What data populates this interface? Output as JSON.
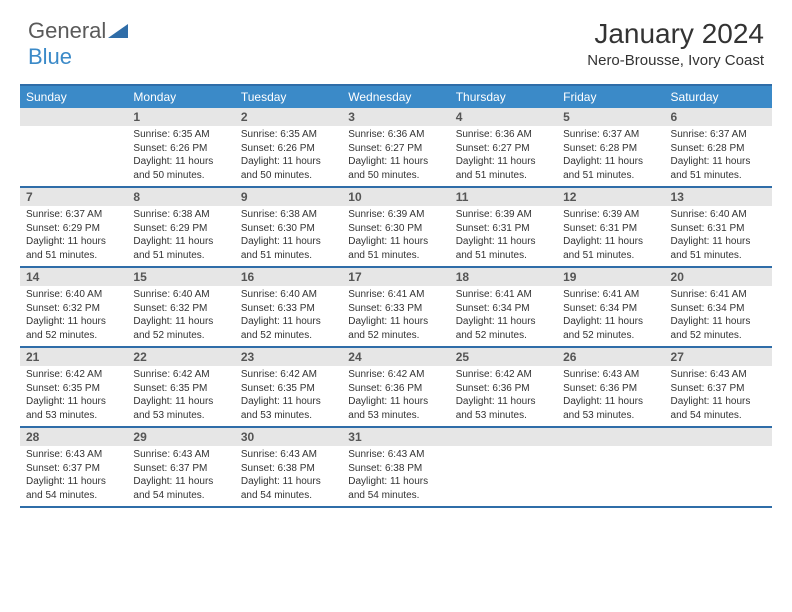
{
  "brand": {
    "general": "General",
    "blue": "Blue"
  },
  "title": "January 2024",
  "location": "Nero-Brousse, Ivory Coast",
  "colors": {
    "header_bg": "#3b8ac8",
    "border": "#2f6da8",
    "daynum_bg": "#e6e6e6",
    "text": "#333333",
    "logo_gray": "#5a5a5a",
    "logo_blue": "#3b8ac8"
  },
  "weekdays": [
    "Sunday",
    "Monday",
    "Tuesday",
    "Wednesday",
    "Thursday",
    "Friday",
    "Saturday"
  ],
  "weeks": [
    [
      {
        "n": "",
        "l": []
      },
      {
        "n": "1",
        "l": [
          "Sunrise: 6:35 AM",
          "Sunset: 6:26 PM",
          "Daylight: 11 hours",
          "and 50 minutes."
        ]
      },
      {
        "n": "2",
        "l": [
          "Sunrise: 6:35 AM",
          "Sunset: 6:26 PM",
          "Daylight: 11 hours",
          "and 50 minutes."
        ]
      },
      {
        "n": "3",
        "l": [
          "Sunrise: 6:36 AM",
          "Sunset: 6:27 PM",
          "Daylight: 11 hours",
          "and 50 minutes."
        ]
      },
      {
        "n": "4",
        "l": [
          "Sunrise: 6:36 AM",
          "Sunset: 6:27 PM",
          "Daylight: 11 hours",
          "and 51 minutes."
        ]
      },
      {
        "n": "5",
        "l": [
          "Sunrise: 6:37 AM",
          "Sunset: 6:28 PM",
          "Daylight: 11 hours",
          "and 51 minutes."
        ]
      },
      {
        "n": "6",
        "l": [
          "Sunrise: 6:37 AM",
          "Sunset: 6:28 PM",
          "Daylight: 11 hours",
          "and 51 minutes."
        ]
      }
    ],
    [
      {
        "n": "7",
        "l": [
          "Sunrise: 6:37 AM",
          "Sunset: 6:29 PM",
          "Daylight: 11 hours",
          "and 51 minutes."
        ]
      },
      {
        "n": "8",
        "l": [
          "Sunrise: 6:38 AM",
          "Sunset: 6:29 PM",
          "Daylight: 11 hours",
          "and 51 minutes."
        ]
      },
      {
        "n": "9",
        "l": [
          "Sunrise: 6:38 AM",
          "Sunset: 6:30 PM",
          "Daylight: 11 hours",
          "and 51 minutes."
        ]
      },
      {
        "n": "10",
        "l": [
          "Sunrise: 6:39 AM",
          "Sunset: 6:30 PM",
          "Daylight: 11 hours",
          "and 51 minutes."
        ]
      },
      {
        "n": "11",
        "l": [
          "Sunrise: 6:39 AM",
          "Sunset: 6:31 PM",
          "Daylight: 11 hours",
          "and 51 minutes."
        ]
      },
      {
        "n": "12",
        "l": [
          "Sunrise: 6:39 AM",
          "Sunset: 6:31 PM",
          "Daylight: 11 hours",
          "and 51 minutes."
        ]
      },
      {
        "n": "13",
        "l": [
          "Sunrise: 6:40 AM",
          "Sunset: 6:31 PM",
          "Daylight: 11 hours",
          "and 51 minutes."
        ]
      }
    ],
    [
      {
        "n": "14",
        "l": [
          "Sunrise: 6:40 AM",
          "Sunset: 6:32 PM",
          "Daylight: 11 hours",
          "and 52 minutes."
        ]
      },
      {
        "n": "15",
        "l": [
          "Sunrise: 6:40 AM",
          "Sunset: 6:32 PM",
          "Daylight: 11 hours",
          "and 52 minutes."
        ]
      },
      {
        "n": "16",
        "l": [
          "Sunrise: 6:40 AM",
          "Sunset: 6:33 PM",
          "Daylight: 11 hours",
          "and 52 minutes."
        ]
      },
      {
        "n": "17",
        "l": [
          "Sunrise: 6:41 AM",
          "Sunset: 6:33 PM",
          "Daylight: 11 hours",
          "and 52 minutes."
        ]
      },
      {
        "n": "18",
        "l": [
          "Sunrise: 6:41 AM",
          "Sunset: 6:34 PM",
          "Daylight: 11 hours",
          "and 52 minutes."
        ]
      },
      {
        "n": "19",
        "l": [
          "Sunrise: 6:41 AM",
          "Sunset: 6:34 PM",
          "Daylight: 11 hours",
          "and 52 minutes."
        ]
      },
      {
        "n": "20",
        "l": [
          "Sunrise: 6:41 AM",
          "Sunset: 6:34 PM",
          "Daylight: 11 hours",
          "and 52 minutes."
        ]
      }
    ],
    [
      {
        "n": "21",
        "l": [
          "Sunrise: 6:42 AM",
          "Sunset: 6:35 PM",
          "Daylight: 11 hours",
          "and 53 minutes."
        ]
      },
      {
        "n": "22",
        "l": [
          "Sunrise: 6:42 AM",
          "Sunset: 6:35 PM",
          "Daylight: 11 hours",
          "and 53 minutes."
        ]
      },
      {
        "n": "23",
        "l": [
          "Sunrise: 6:42 AM",
          "Sunset: 6:35 PM",
          "Daylight: 11 hours",
          "and 53 minutes."
        ]
      },
      {
        "n": "24",
        "l": [
          "Sunrise: 6:42 AM",
          "Sunset: 6:36 PM",
          "Daylight: 11 hours",
          "and 53 minutes."
        ]
      },
      {
        "n": "25",
        "l": [
          "Sunrise: 6:42 AM",
          "Sunset: 6:36 PM",
          "Daylight: 11 hours",
          "and 53 minutes."
        ]
      },
      {
        "n": "26",
        "l": [
          "Sunrise: 6:43 AM",
          "Sunset: 6:36 PM",
          "Daylight: 11 hours",
          "and 53 minutes."
        ]
      },
      {
        "n": "27",
        "l": [
          "Sunrise: 6:43 AM",
          "Sunset: 6:37 PM",
          "Daylight: 11 hours",
          "and 54 minutes."
        ]
      }
    ],
    [
      {
        "n": "28",
        "l": [
          "Sunrise: 6:43 AM",
          "Sunset: 6:37 PM",
          "Daylight: 11 hours",
          "and 54 minutes."
        ]
      },
      {
        "n": "29",
        "l": [
          "Sunrise: 6:43 AM",
          "Sunset: 6:37 PM",
          "Daylight: 11 hours",
          "and 54 minutes."
        ]
      },
      {
        "n": "30",
        "l": [
          "Sunrise: 6:43 AM",
          "Sunset: 6:38 PM",
          "Daylight: 11 hours",
          "and 54 minutes."
        ]
      },
      {
        "n": "31",
        "l": [
          "Sunrise: 6:43 AM",
          "Sunset: 6:38 PM",
          "Daylight: 11 hours",
          "and 54 minutes."
        ]
      },
      {
        "n": "",
        "l": []
      },
      {
        "n": "",
        "l": []
      },
      {
        "n": "",
        "l": []
      }
    ]
  ]
}
